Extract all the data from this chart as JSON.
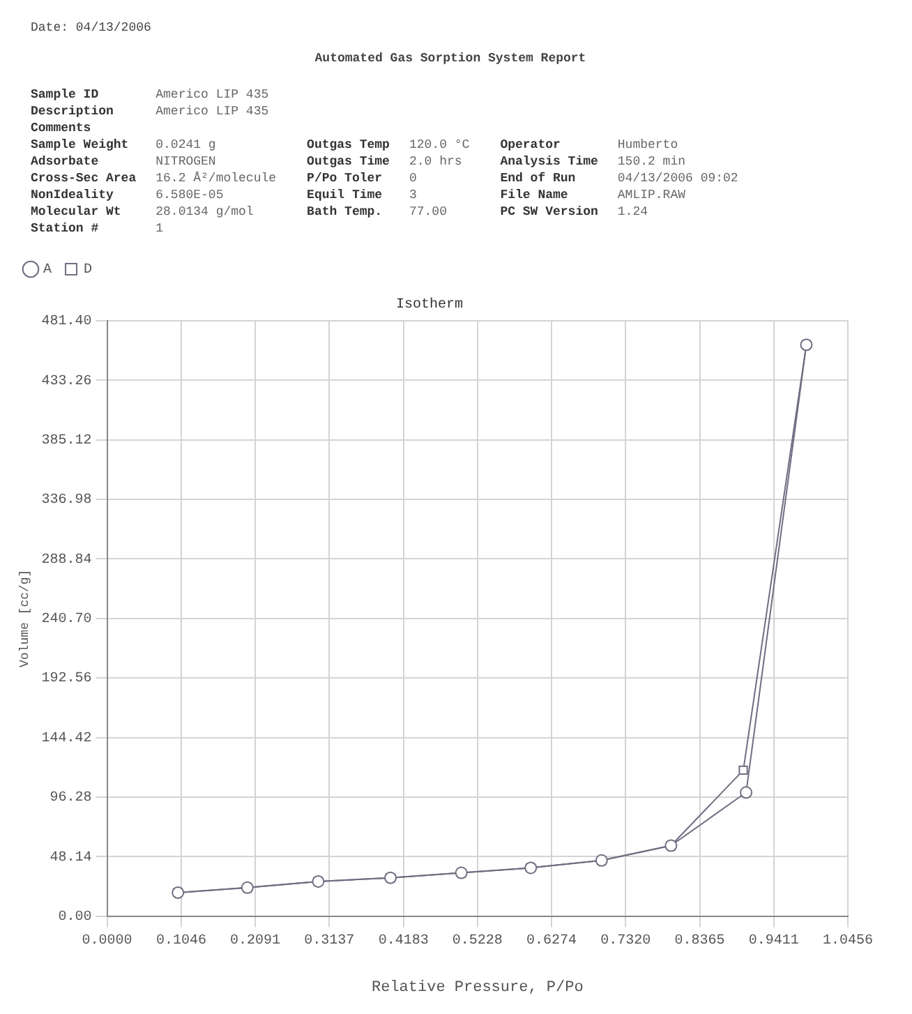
{
  "chart_data": {
    "type": "line",
    "title": "Isotherm",
    "xlabel": "Relative Pressure, P/Po",
    "ylabel": "Volume [cc/g]",
    "annotations": [
      "Date: 04/13/2006",
      "Automated Gas Sorption System Report",
      "Sample ID",
      "Americo LIP 435",
      "Description",
      "Americo LIP 435",
      "Comments",
      "Sample Weight",
      "0.0241 g",
      "Adsorbate",
      "NITROGEN",
      "Cross-Sec Area",
      "16.2 Å²/molecule",
      "NonIdeality",
      "6.580E-05",
      "Molecular Wt",
      "28.0134 g/mol",
      "Station #",
      "1",
      "Outgas Temp",
      "120.0 °C",
      "Outgas Time",
      "2.0 hrs",
      "P/Po Toler",
      "0",
      "Equil Time",
      "3",
      "Bath Temp.",
      "77.00",
      "Operator",
      "Humberto",
      "Analysis Time",
      "150.2 min",
      "End of Run",
      "04/13/2006 09:02",
      "File Name",
      "AMLIP.RAW",
      "PC SW Version",
      "1.24"
    ],
    "series": [
      {
        "name": "A",
        "color": "#6e6e82",
        "marker": "circle",
        "x": [
          0.1,
          0.198,
          0.298,
          0.4,
          0.5,
          0.598,
          0.698,
          0.796,
          0.902,
          0.987
        ],
        "values": [
          19,
          23,
          28,
          31,
          35,
          39,
          45,
          57,
          100,
          462
        ]
      },
      {
        "name": "D",
        "color": "#6e6e82",
        "marker": "square",
        "x": [
          0.987,
          0.898,
          0.796,
          0.698,
          0.598,
          0.5,
          0.4,
          0.298,
          0.198,
          0.1
        ],
        "values": [
          462,
          118,
          57,
          45,
          39,
          35,
          31,
          28,
          23,
          19
        ]
      }
    ],
    "xlim": [
      0,
      1.0456
    ],
    "xticks": [
      {
        "value": 0,
        "label": "0.0000"
      },
      0.1046,
      0.2091,
      0.3137,
      0.4183,
      0.5228,
      0.6274,
      {
        "value": 0.732,
        "label": "0.7320"
      },
      0.8365,
      0.9411,
      1.0456
    ],
    "ylim": [
      0,
      481.4
    ],
    "yticks": [
      {
        "value": 0,
        "label": "0.00"
      },
      48.14,
      96.28,
      144.42,
      192.56,
      {
        "value": 240.7,
        "label": "240.70"
      },
      288.84,
      336.98,
      385.12,
      433.26,
      {
        "value": 481.4,
        "label": "481.40"
      }
    ],
    "grid": true,
    "legend": "top left",
    "line_style": "solid"
  }
}
